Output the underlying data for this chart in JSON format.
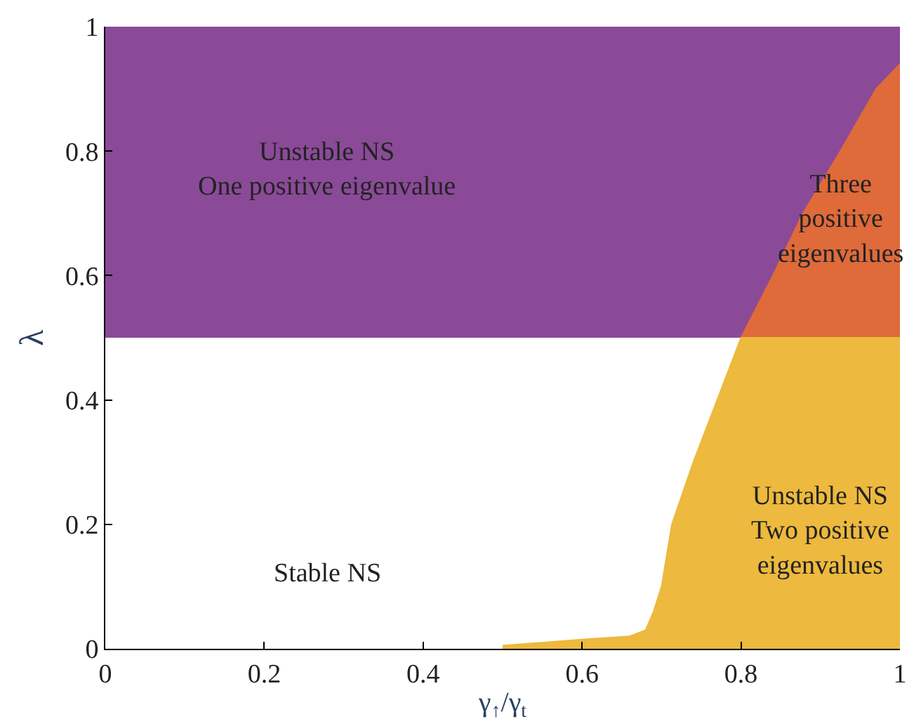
{
  "chart_data": {
    "type": "area",
    "xlabel": "γ$_{↑}$/γ$_{t}$",
    "ylabel": "λ",
    "xlim": [
      0,
      1
    ],
    "ylim": [
      0,
      1
    ],
    "xticks": [
      0,
      0.2,
      0.4,
      0.6,
      0.8,
      1
    ],
    "yticks": [
      0,
      0.2,
      0.4,
      0.6,
      0.8,
      1
    ],
    "grid": false,
    "bands": [
      {
        "axis": "y",
        "from": 0.5,
        "to": 1,
        "color": "#8a4a98"
      }
    ],
    "series": [
      {
        "color": "#df6a3a",
        "x": [
          0.8,
          0.84,
          0.878,
          0.925,
          0.97,
          1.0
        ],
        "values": [
          0.5,
          0.6,
          0.7,
          0.8,
          0.9,
          0.94
        ]
      },
      {
        "color": "#edb93e",
        "x": [
          0.5,
          0.55,
          0.6,
          0.66,
          0.68,
          0.69,
          0.7,
          0.713,
          0.74,
          0.77,
          0.8,
          1.0
        ],
        "values": [
          0.005,
          0.01,
          0.015,
          0.02,
          0.03,
          0.06,
          0.1,
          0.2,
          0.3,
          0.4,
          0.5,
          0.5
        ]
      }
    ],
    "annotations": [
      "Unstable NS\nOne positive eigenvalue",
      "Three\npositive\neigenvalues",
      "Unstable NS\nTwo positive\neigenvalues",
      "Stable NS"
    ]
  }
}
